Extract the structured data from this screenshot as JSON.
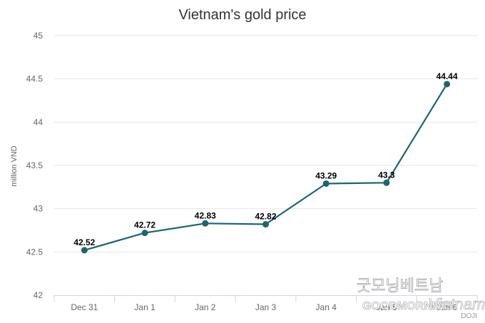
{
  "chart_data": {
    "type": "line",
    "title": "Vietnam's gold price",
    "ylabel": "million VND",
    "xlabel": "",
    "categories": [
      "Dec 31",
      "Jan 1",
      "Jan 2",
      "Jan 3",
      "Jan 4",
      "Jan 5",
      "Jan 6"
    ],
    "values": [
      42.52,
      42.72,
      42.83,
      42.82,
      43.29,
      43.3,
      44.44
    ],
    "data_labels": [
      "42.52",
      "42.72",
      "42.83",
      "42.82",
      "43.29",
      "43.3",
      "44.44"
    ],
    "ylim": [
      42,
      45
    ],
    "yticks": [
      "42",
      "42.5",
      "43",
      "43.5",
      "44",
      "44.5",
      "45"
    ],
    "grid": true,
    "legend": "none",
    "credit": "DOJI",
    "colors": {
      "line": "#1a6670",
      "grid": "#e6e6e6",
      "axis": "#ccd6eb"
    }
  },
  "watermark": {
    "korean": "굿모닝베트남",
    "brand": "GOODMORNING",
    "script": "Vietnam"
  }
}
